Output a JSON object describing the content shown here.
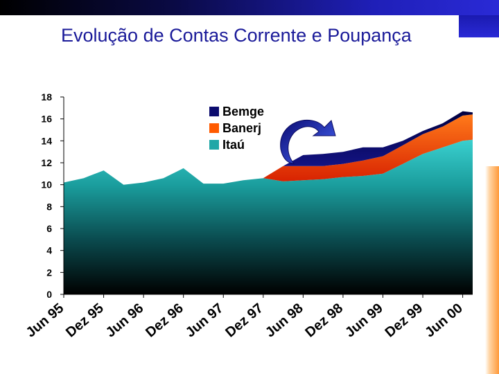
{
  "title": "Evolução de Contas Corrente e Poupança",
  "colors": {
    "bemge": "#0b0b6e",
    "banerj": "#ff5a00",
    "itau": "#1fa7a7",
    "title": "#1a1a99",
    "arrow": "#1f2fb0"
  },
  "chart_data": {
    "type": "area",
    "title": "",
    "xlabel": "",
    "ylabel": "",
    "ylim": [
      0,
      18
    ],
    "yticks": [
      0,
      2,
      4,
      6,
      8,
      10,
      12,
      14,
      16,
      18
    ],
    "grid": false,
    "legend": "top-center",
    "stacked": true,
    "categories": [
      "Jun 95",
      "Dez 95",
      "Jun 96",
      "Dez 96",
      "Jun 97",
      "Dez 97",
      "Jun 98",
      "Dez 98",
      "Jun 99",
      "Dez 99",
      "Jun 00"
    ],
    "x": [
      0,
      0.5,
      1,
      1.5,
      2,
      2.5,
      3,
      3.5,
      4,
      4.5,
      5,
      5.5,
      6,
      6.5,
      7,
      7.5,
      8,
      8.5,
      9,
      9.5,
      10,
      10.25
    ],
    "series": [
      {
        "name": "Itaú",
        "values": [
          10.2,
          10.6,
          11.3,
          10.0,
          10.2,
          10.6,
          11.5,
          10.1,
          10.1,
          10.4,
          10.6,
          10.3,
          10.4,
          10.5,
          10.7,
          10.8,
          11.0,
          11.9,
          12.8,
          13.4,
          14.0,
          14.1
        ]
      },
      {
        "name": "Banerj",
        "values": [
          0,
          0,
          0,
          0,
          0,
          0,
          0,
          0,
          0,
          0,
          0,
          1.4,
          1.3,
          1.2,
          1.2,
          1.4,
          1.6,
          1.7,
          1.8,
          1.9,
          2.3,
          2.3
        ]
      },
      {
        "name": "Bemge",
        "values": [
          0,
          0,
          0,
          0,
          0,
          0,
          0,
          0,
          0,
          0,
          0,
          0,
          1.0,
          1.1,
          1.1,
          1.2,
          0.8,
          0.4,
          0.3,
          0.3,
          0.4,
          0.2
        ]
      }
    ]
  }
}
